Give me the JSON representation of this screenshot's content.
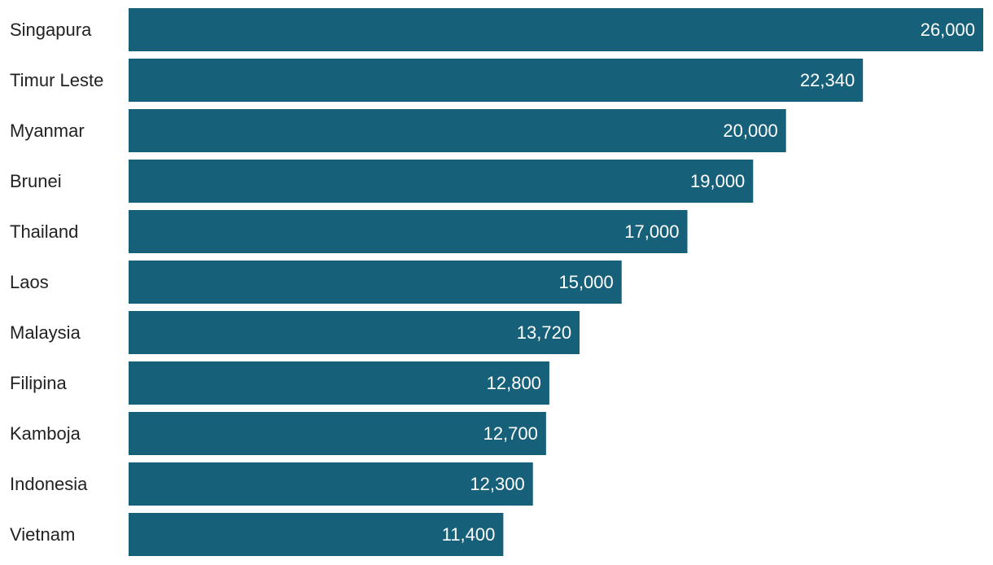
{
  "chart_data": {
    "type": "bar",
    "orientation": "horizontal",
    "title": "",
    "xlabel": "",
    "ylabel": "",
    "categories": [
      "Singapura",
      "Timur Leste",
      "Myanmar",
      "Brunei",
      "Thailand",
      "Laos",
      "Malaysia",
      "Filipina",
      "Kamboja",
      "Indonesia",
      "Vietnam"
    ],
    "values": [
      26000,
      22340,
      20000,
      19000,
      17000,
      15000,
      13720,
      12800,
      12700,
      12300,
      11400
    ],
    "value_labels": [
      "26,000",
      "22,340",
      "20,000",
      "19,000",
      "17,000",
      "15,000",
      "13,720",
      "12,800",
      "12,700",
      "12,300",
      "11,400"
    ],
    "xlim": [
      0,
      26000
    ],
    "grid": false,
    "legend": "none",
    "bar_color": "#17607a",
    "value_label_color": "#ffffff",
    "category_label_color": "#222222"
  }
}
